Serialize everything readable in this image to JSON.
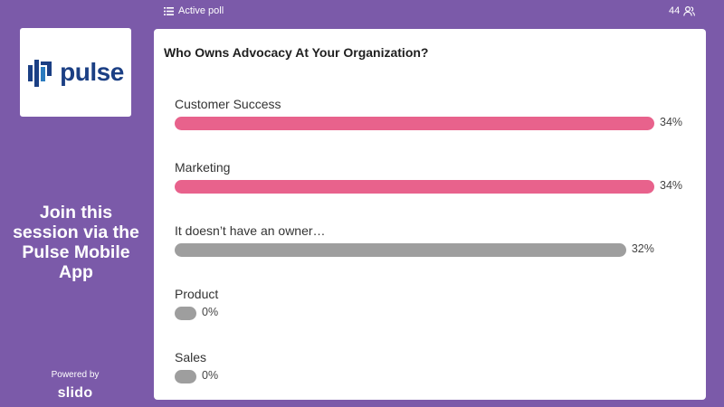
{
  "topbar": {
    "active_poll_label": "Active poll",
    "participant_count": "44",
    "list_icon": "list-icon",
    "people_icon": "people-icon"
  },
  "sidebar": {
    "logo_text": "pulse",
    "logo_color": "#1b3f84",
    "join_text": "Join this\nsession via the\nPulse Mobile\nApp",
    "powered_by": "Powered by",
    "slido_text": "slido"
  },
  "poll": {
    "question": "Who Owns Advocacy At Your Organization?",
    "options": [
      {
        "label": "Customer Success",
        "percent_text": "34%",
        "percent": 34,
        "leading": true
      },
      {
        "label": "Marketing",
        "percent_text": "34%",
        "percent": 34,
        "leading": true
      },
      {
        "label": "It doesn’t have an owner…",
        "percent_text": "32%",
        "percent": 32,
        "leading": false
      },
      {
        "label": "Product",
        "percent_text": "0%",
        "percent": 0,
        "leading": false
      },
      {
        "label": "Sales",
        "percent_text": "0%",
        "percent": 0,
        "leading": false
      }
    ]
  },
  "colors": {
    "background": "#7b5aa9",
    "leading_bar": "#e8628c",
    "other_bar": "#9e9e9e",
    "card": "#ffffff"
  }
}
